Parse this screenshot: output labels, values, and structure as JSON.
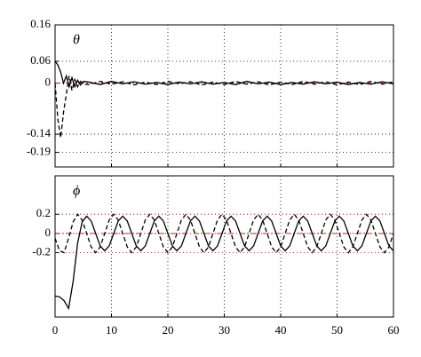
{
  "chart_data": [
    {
      "type": "line",
      "label": "θ",
      "x": [
        0,
        0.5,
        1,
        1.5,
        2,
        2.5,
        3,
        3.5,
        4,
        4.5,
        5,
        6,
        8,
        10,
        12,
        14,
        16,
        18,
        20,
        22,
        24,
        26,
        28,
        30,
        32,
        34,
        36,
        38,
        40,
        42,
        44,
        46,
        48,
        50,
        52,
        54,
        56,
        58,
        60
      ],
      "series": [
        {
          "color": "#000000",
          "dash": "solid",
          "values": [
            0.06,
            0.05,
            0.03,
            0.0,
            0.02,
            -0.01,
            0.015,
            -0.01,
            0.008,
            -0.005,
            0.005,
            0.003,
            -0.004,
            0.005,
            -0.002,
            0.004,
            -0.003,
            0.002,
            -0.004,
            0.003,
            -0.002,
            0.004,
            -0.003,
            0.002,
            -0.004,
            0.005,
            -0.002,
            0.003,
            -0.004,
            0.002,
            -0.003,
            0.004,
            -0.002,
            0.003,
            -0.004,
            0.002,
            -0.003,
            0.004,
            -0.002
          ]
        },
        {
          "color": "#000000",
          "dash": "dashed",
          "values": [
            0,
            -0.1,
            -0.15,
            -0.08,
            -0.03,
            0.02,
            -0.02,
            0.01,
            -0.01,
            0.005,
            -0.003,
            -0.004,
            0.005,
            -0.003,
            0.004,
            -0.005,
            0.003,
            -0.004,
            0.005,
            -0.002,
            0.004,
            -0.005,
            0.003,
            -0.004,
            0.005,
            -0.003,
            0.004,
            -0.005,
            0.003,
            -0.004,
            0.005,
            -0.003,
            0.004,
            -0.005,
            0.003,
            -0.004,
            0.005,
            -0.003,
            0.004
          ]
        }
      ],
      "hlines": [
        {
          "value": 0,
          "color": "#d62728",
          "style": "dashdot"
        }
      ],
      "xlim": [
        0,
        60
      ],
      "xticks": [
        0,
        10,
        20,
        30,
        40,
        50,
        60
      ],
      "show_xtick_labels": false,
      "ylim": [
        -0.23,
        0.16
      ],
      "yticks": [
        0.16,
        0.06,
        0,
        -0.14,
        -0.19
      ],
      "grid": true
    },
    {
      "type": "line",
      "label": "ϕ",
      "x": [
        0,
        0.8,
        1.6,
        2.4,
        3.2,
        4,
        4.8,
        5.6,
        6.4,
        7.2,
        8,
        8.8,
        9.6,
        10.4,
        11.2,
        12,
        12.8,
        13.6,
        14.4,
        15.2,
        16,
        16.8,
        17.6,
        18.4,
        19.2,
        20,
        20.8,
        21.6,
        22.4,
        23.2,
        24,
        24.8,
        25.6,
        26.4,
        27.2,
        28,
        28.8,
        29.6,
        30.4,
        31.2,
        32,
        32.8,
        33.6,
        34.4,
        35.2,
        36,
        36.8,
        37.6,
        38.4,
        39.2,
        40,
        40.8,
        41.6,
        42.4,
        43.2,
        44,
        44.8,
        45.6,
        46.4,
        47.2,
        48,
        48.8,
        49.6,
        50.4,
        51.2,
        52,
        52.8,
        53.6,
        54.4,
        55.2,
        56,
        56.8,
        57.6,
        58.4,
        59.2,
        60
      ],
      "series": [
        {
          "color": "#000000",
          "dash": "solid",
          "values": [
            -0.65,
            -0.66,
            -0.7,
            -0.78,
            -0.5,
            -0.1,
            0.12,
            0.18,
            0.13,
            0,
            -0.13,
            -0.18,
            -0.13,
            0,
            0.13,
            0.18,
            0.13,
            0,
            -0.13,
            -0.18,
            -0.13,
            0,
            0.13,
            0.18,
            0.13,
            0,
            -0.13,
            -0.18,
            -0.13,
            0,
            0.13,
            0.18,
            0.13,
            0,
            -0.13,
            -0.18,
            -0.13,
            0,
            0.13,
            0.18,
            0.13,
            0,
            -0.13,
            -0.18,
            -0.13,
            0,
            0.13,
            0.18,
            0.13,
            0,
            -0.13,
            -0.18,
            -0.13,
            0,
            0.13,
            0.18,
            0.13,
            0,
            -0.13,
            -0.18,
            -0.13,
            0,
            0.13,
            0.18,
            0.13,
            0,
            -0.13,
            -0.18,
            -0.13,
            0,
            0.13,
            0.18,
            0.13,
            0,
            -0.13,
            -0.18
          ]
        },
        {
          "color": "#000000",
          "dash": "dashed",
          "values": [
            -0.05,
            -0.18,
            -0.2,
            -0.05,
            0.12,
            0.2,
            0.14,
            0,
            -0.14,
            -0.2,
            -0.14,
            0,
            0.14,
            0.2,
            0.14,
            0,
            -0.14,
            -0.2,
            -0.14,
            0,
            0.14,
            0.2,
            0.14,
            0,
            -0.14,
            -0.2,
            -0.14,
            0,
            0.14,
            0.2,
            0.14,
            0,
            -0.14,
            -0.2,
            -0.14,
            0,
            0.14,
            0.2,
            0.14,
            0,
            -0.14,
            -0.2,
            -0.14,
            0,
            0.14,
            0.2,
            0.14,
            0,
            -0.14,
            -0.2,
            -0.14,
            0,
            0.14,
            0.2,
            0.14,
            0,
            -0.14,
            -0.2,
            -0.14,
            0,
            0.14,
            0.2,
            0.14,
            0,
            -0.14,
            -0.2,
            -0.14,
            0,
            0.14,
            0.2,
            0.14,
            0,
            -0.14,
            -0.2,
            -0.14,
            0
          ]
        }
      ],
      "hlines": [
        {
          "value": 0.2,
          "color": "#d62728",
          "style": "dotted"
        },
        {
          "value": 0,
          "color": "#d62728",
          "style": "dashdot"
        },
        {
          "value": -0.2,
          "color": "#d62728",
          "style": "dotted"
        }
      ],
      "xlim": [
        0,
        60
      ],
      "xticks": [
        0,
        10,
        20,
        30,
        40,
        50,
        60
      ],
      "show_xtick_labels": true,
      "ylim": [
        -0.87,
        0.6
      ],
      "yticks": [
        0.2,
        0,
        -0.2
      ],
      "grid": true
    }
  ]
}
